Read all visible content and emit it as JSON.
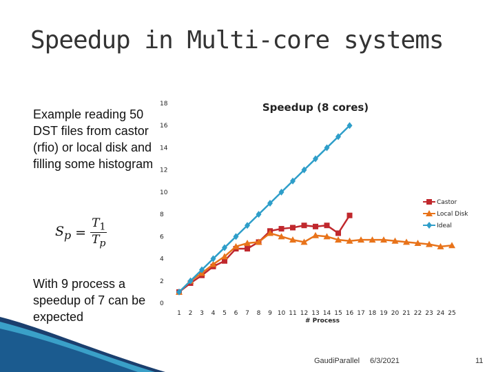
{
  "slide": {
    "title": "Speedup in Multi-core systems",
    "left_text_1": "Example reading 50 DST files from castor (rfio) or local disk and filling some histogram",
    "formula": {
      "lhs": "S",
      "lhs_sub": "p",
      "num": "T",
      "num_sub": "1",
      "den": "T",
      "den_sub": "p"
    },
    "left_text_2": "With 9 process a speedup of 7 can be expected",
    "footer": {
      "org": "GaudiParallel",
      "date": "6/3/2021",
      "page": "11"
    }
  },
  "chart_data": {
    "type": "line",
    "title": "Speedup (8 cores)",
    "xlabel": "# Process",
    "ylabel": "",
    "x": [
      1,
      2,
      3,
      4,
      5,
      6,
      7,
      8,
      9,
      10,
      11,
      12,
      13,
      14,
      15,
      16,
      17,
      18,
      19,
      20,
      21,
      22,
      23,
      24,
      25
    ],
    "ylim": [
      0,
      18
    ],
    "yticks": [
      0,
      2,
      4,
      6,
      8,
      10,
      12,
      14,
      16,
      18
    ],
    "grid": false,
    "legend_position": "right",
    "series": [
      {
        "name": "Castor",
        "color": "#c0282d",
        "marker": "square",
        "x": [
          1,
          2,
          3,
          4,
          5,
          6,
          7,
          8,
          9,
          10,
          11,
          12,
          13,
          14,
          15,
          16
        ],
        "values": [
          1.0,
          1.8,
          2.5,
          3.3,
          3.8,
          4.9,
          4.9,
          5.5,
          6.5,
          6.7,
          6.8,
          7.0,
          6.9,
          7.0,
          6.3,
          7.9
        ]
      },
      {
        "name": "Local Disk",
        "color": "#e8731a",
        "marker": "triangle",
        "x": [
          1,
          2,
          3,
          4,
          5,
          6,
          7,
          8,
          9,
          10,
          11,
          12,
          13,
          14,
          15,
          16,
          17,
          18,
          19,
          20,
          21,
          22,
          23,
          24,
          25
        ],
        "values": [
          1.0,
          2.0,
          2.7,
          3.5,
          4.2,
          5.1,
          5.4,
          5.5,
          6.3,
          6.0,
          5.7,
          5.5,
          6.1,
          6.0,
          5.7,
          5.6,
          5.7,
          5.7,
          5.7,
          5.6,
          5.5,
          5.4,
          5.3,
          5.1,
          5.2
        ]
      },
      {
        "name": "Ideal",
        "color": "#2e9ec9",
        "marker": "diamond",
        "x": [
          1,
          2,
          3,
          4,
          5,
          6,
          7,
          8,
          9,
          10,
          11,
          12,
          13,
          14,
          15,
          16
        ],
        "values": [
          1,
          2,
          3,
          4,
          5,
          6,
          7,
          8,
          9,
          10,
          11,
          12,
          13,
          14,
          15,
          16
        ]
      }
    ]
  },
  "colors": {
    "swoosh_dark": "#1b3f6e",
    "swoosh_light": "#3aa0c8"
  }
}
